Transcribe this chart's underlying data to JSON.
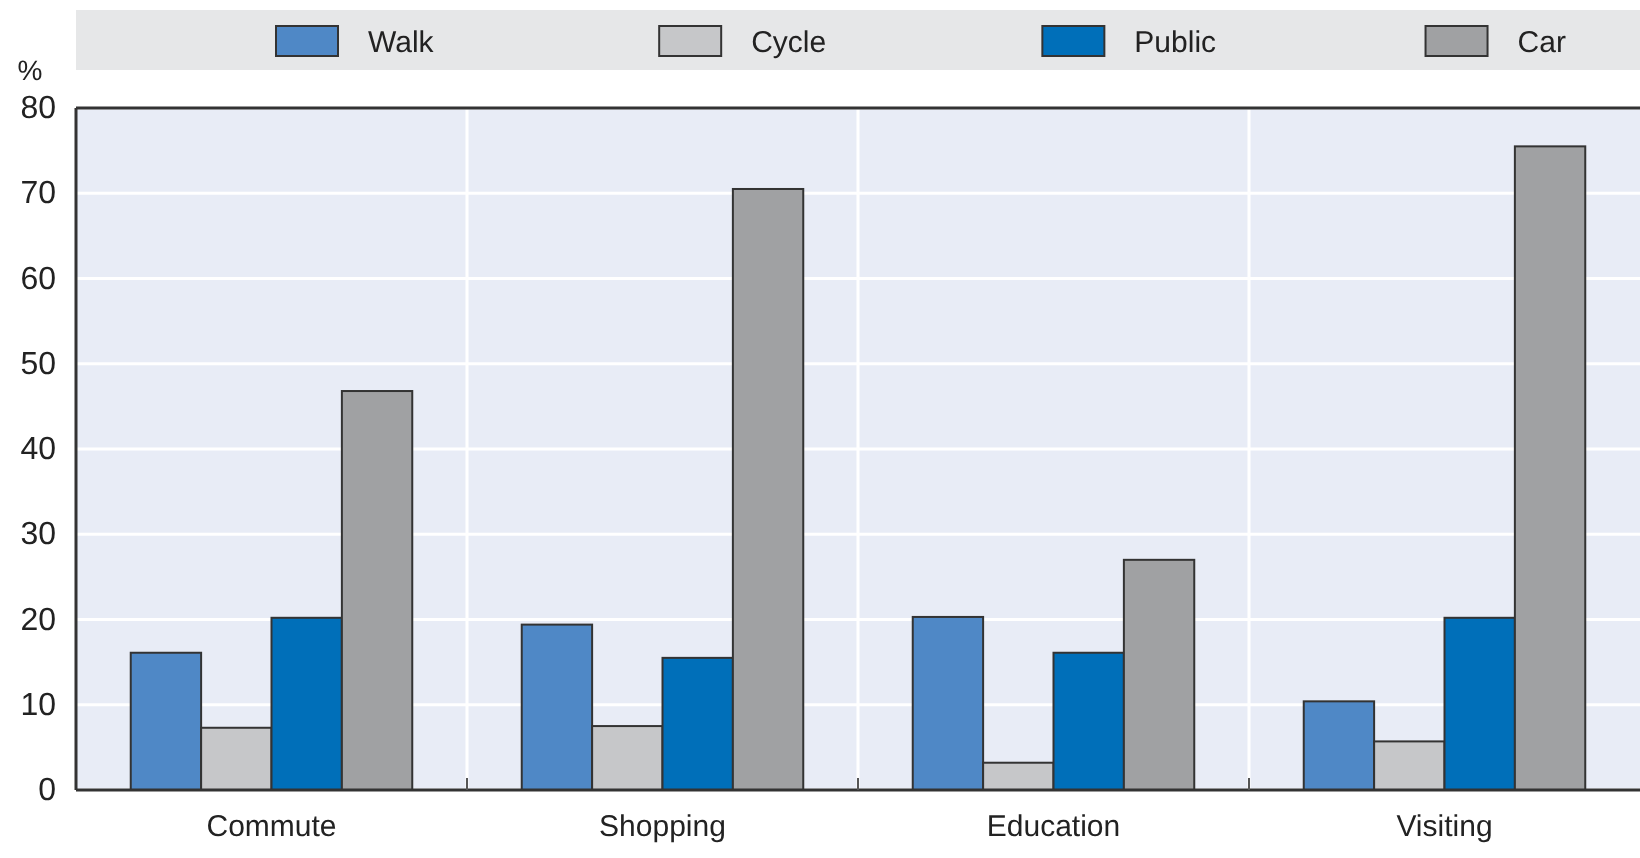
{
  "chart_data": {
    "type": "bar",
    "ylabel": "%",
    "categories": [
      "Commute",
      "Shopping",
      "Education",
      "Visiting"
    ],
    "series": [
      {
        "name": "Walk",
        "color": "#4f88c6",
        "values": [
          16.1,
          19.4,
          20.3,
          10.4
        ]
      },
      {
        "name": "Cycle",
        "color": "#c6c7c9",
        "values": [
          7.3,
          7.5,
          3.2,
          5.7
        ]
      },
      {
        "name": "Public",
        "color": "#006fb9",
        "values": [
          20.2,
          15.5,
          16.1,
          20.2
        ]
      },
      {
        "name": "Car",
        "color": "#a0a1a3",
        "values": [
          46.8,
          70.5,
          27.0,
          75.5
        ]
      }
    ],
    "ylim": [
      0,
      80
    ],
    "yticks": [
      0,
      10,
      20,
      30,
      40,
      50,
      60,
      70,
      80
    ],
    "grid": true,
    "legend": "top"
  }
}
